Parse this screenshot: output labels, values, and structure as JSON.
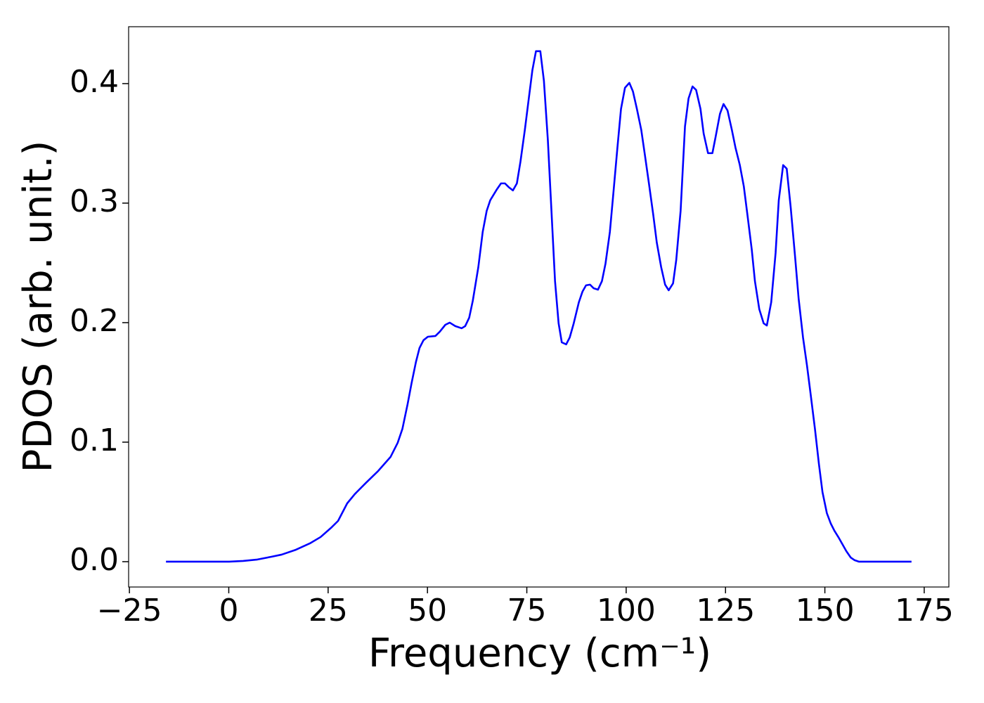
{
  "chart_data": {
    "type": "line",
    "xlabel": "Frequency (cm⁻¹)",
    "ylabel": "PDOS (arb. unit.)",
    "x": [
      -15.8,
      -11.4,
      -6.1,
      0.1,
      3.6,
      7.2,
      10.7,
      13.3,
      16.9,
      20.4,
      23.1,
      25.7,
      27.5,
      29.8,
      31.7,
      34.5,
      37.6,
      40.7,
      42.5,
      43.7,
      45.0,
      46.0,
      47.1,
      48.0,
      49.0,
      50.1,
      52.0,
      53.1,
      54.5,
      55.6,
      57.0,
      58.6,
      59.5,
      60.5,
      61.4,
      62.8,
      63.9,
      64.9,
      65.8,
      67.4,
      68.5,
      69.5,
      70.4,
      71.5,
      72.5,
      73.4,
      74.5,
      75.5,
      76.4,
      77.3,
      78.4,
      79.3,
      80.3,
      81.2,
      82.1,
      83.0,
      83.8,
      84.9,
      85.8,
      86.8,
      88.1,
      89.0,
      89.9,
      90.9,
      91.8,
      92.9,
      93.9,
      94.8,
      95.9,
      96.7,
      97.8,
      98.7,
      99.7,
      100.8,
      101.7,
      102.7,
      103.8,
      104.7,
      105.7,
      106.8,
      107.7,
      108.8,
      109.8,
      110.7,
      111.8,
      112.6,
      113.7,
      114.8,
      115.7,
      116.7,
      117.6,
      118.7,
      119.5,
      120.6,
      121.7,
      122.5,
      123.6,
      124.5,
      125.5,
      126.6,
      127.5,
      128.6,
      129.6,
      130.5,
      131.6,
      132.4,
      133.5,
      134.6,
      135.4,
      136.5,
      137.6,
      138.4,
      139.5,
      140.4,
      141.4,
      142.5,
      143.4,
      144.5,
      145.5,
      146.4,
      147.5,
      148.5,
      149.4,
      150.5,
      151.5,
      152.4,
      153.5,
      154.5,
      155.4,
      156.5,
      157.5,
      158.6,
      161.8,
      167.1,
      171.8
    ],
    "series": [
      {
        "color": "#0000ff",
        "values": [
          0,
          0,
          0,
          0,
          0.0006,
          0.0018,
          0.0041,
          0.0059,
          0.01,
          0.0153,
          0.0206,
          0.0282,
          0.0341,
          0.0488,
          0.0565,
          0.0659,
          0.0759,
          0.0876,
          0.0994,
          0.1112,
          0.1318,
          0.1494,
          0.1671,
          0.1788,
          0.1853,
          0.1882,
          0.1888,
          0.1924,
          0.1982,
          0.2,
          0.1971,
          0.1953,
          0.1971,
          0.2041,
          0.2182,
          0.2465,
          0.2759,
          0.2935,
          0.3024,
          0.3112,
          0.3165,
          0.3165,
          0.3135,
          0.3106,
          0.3165,
          0.3347,
          0.3612,
          0.3876,
          0.4112,
          0.4271,
          0.4271,
          0.4024,
          0.3524,
          0.2935,
          0.2347,
          0.1994,
          0.1835,
          0.1818,
          0.1876,
          0.1994,
          0.2171,
          0.2259,
          0.2312,
          0.2318,
          0.2288,
          0.2276,
          0.2347,
          0.2494,
          0.2759,
          0.3053,
          0.3465,
          0.3788,
          0.3965,
          0.4006,
          0.3935,
          0.3788,
          0.3612,
          0.3406,
          0.3171,
          0.2906,
          0.2671,
          0.2465,
          0.2318,
          0.2271,
          0.2329,
          0.2524,
          0.2935,
          0.3641,
          0.3876,
          0.3976,
          0.3947,
          0.3788,
          0.3582,
          0.3418,
          0.3418,
          0.3553,
          0.3747,
          0.3829,
          0.3776,
          0.3612,
          0.3465,
          0.3318,
          0.3141,
          0.2906,
          0.2612,
          0.2347,
          0.2112,
          0.1994,
          0.1976,
          0.2171,
          0.2582,
          0.3024,
          0.3318,
          0.3288,
          0.2965,
          0.2553,
          0.22,
          0.1876,
          0.1641,
          0.1406,
          0.1112,
          0.0818,
          0.0582,
          0.0406,
          0.0318,
          0.0259,
          0.02,
          0.0141,
          0.0088,
          0.0035,
          0.0012,
          0,
          0,
          0,
          0
        ]
      }
    ],
    "xlim": [
      -25.2,
      181.2
    ],
    "xticks": [
      {
        "value": -25,
        "label": "−25"
      },
      0,
      25,
      50,
      75,
      100,
      125,
      150,
      175
    ],
    "ylim": [
      -0.0212,
      0.4476
    ],
    "yticks": [
      {
        "value": 0,
        "label": "0.0"
      },
      0.1,
      0.2,
      0.3,
      0.4
    ],
    "grid": false
  }
}
